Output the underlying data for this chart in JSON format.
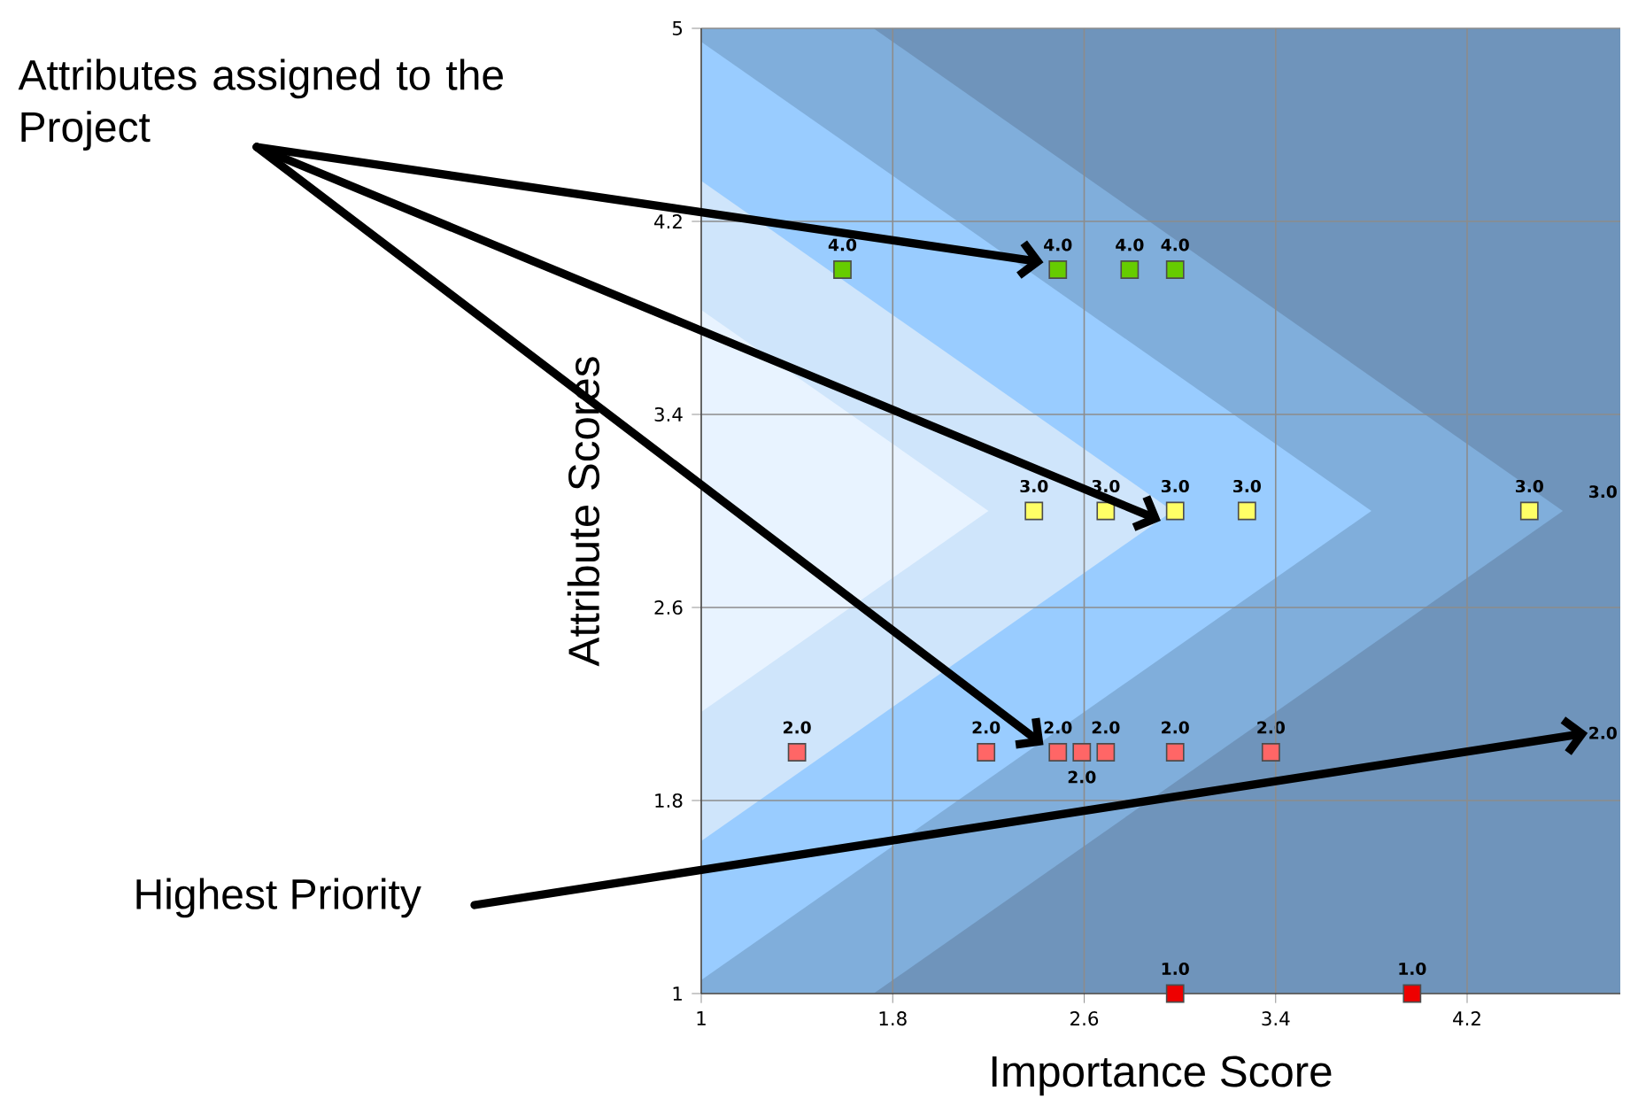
{
  "chart_data": {
    "type": "scatter",
    "xlabel": "Importance Score",
    "ylabel": "Attribute Scores",
    "xlim": [
      1,
      4.84
    ],
    "ylim": [
      1,
      5
    ],
    "xticks": [
      1,
      1.8,
      2.6,
      3.4,
      4.2
    ],
    "yticks": [
      1,
      1.8,
      2.6,
      3.4,
      4.2,
      5
    ],
    "grid": true,
    "marker": "square",
    "series": [
      {
        "color": "#66cc00",
        "x": [
          1.59,
          2.49,
          2.79,
          2.98
        ],
        "values": [
          4,
          4,
          4,
          4
        ],
        "value_labels": [
          "4.0",
          "4.0",
          "4.0",
          "4.0"
        ]
      },
      {
        "color": "#ffff66",
        "x": [
          2.39,
          2.69,
          2.98,
          3.28,
          4.46
        ],
        "values": [
          3,
          3,
          3,
          3,
          3
        ],
        "value_labels": [
          "3.0",
          "3.0",
          "3.0",
          "3.0",
          "3.0"
        ]
      },
      {
        "color": "#ff6666",
        "x": [
          1.4,
          2.19,
          2.49,
          2.59,
          2.69,
          2.98,
          3.38
        ],
        "values": [
          2,
          2,
          2,
          2,
          2,
          2,
          2
        ],
        "value_labels": [
          "2.0",
          "2.0",
          "2.0",
          "2.0",
          "2.0",
          "2.0",
          "2.0"
        ]
      },
      {
        "color": "#ee0000",
        "x": [
          2.98,
          3.97
        ],
        "values": [
          1,
          1
        ],
        "value_labels": [
          "1.0",
          "1.0"
        ]
      }
    ],
    "annotations": [
      "Attributes assigned to the Project",
      "Highest Priority",
      "3.0",
      "2.0"
    ]
  }
}
